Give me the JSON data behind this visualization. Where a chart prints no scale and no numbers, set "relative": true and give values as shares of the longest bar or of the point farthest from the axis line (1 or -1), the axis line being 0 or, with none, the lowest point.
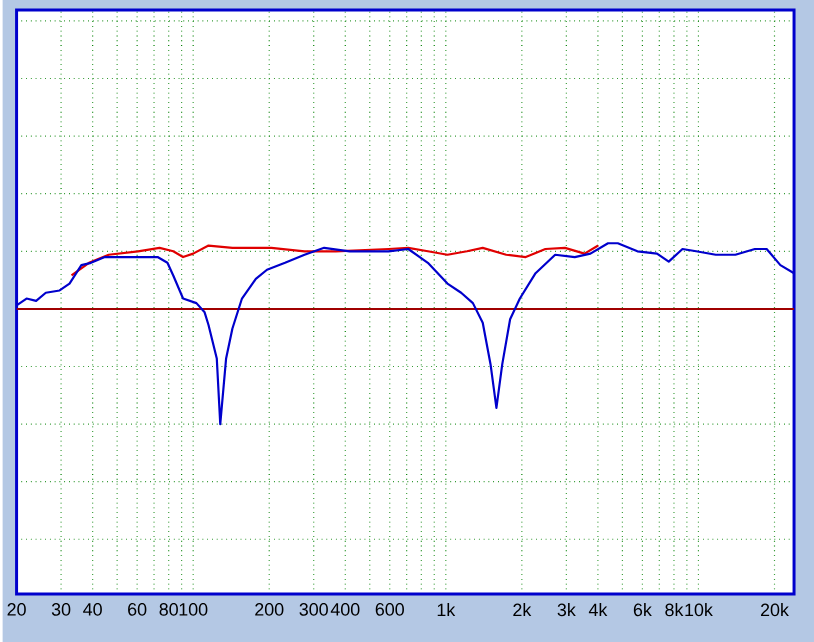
{
  "chart_data": {
    "type": "line",
    "relative": true,
    "log": "x",
    "grid": true,
    "xlim": [
      20,
      23900
    ],
    "ref_lines": [
      {
        "axis": "y",
        "value": 0,
        "color": "#a00000"
      }
    ],
    "xticks": [
      20,
      30,
      40,
      {
        "value": 50,
        "label": null
      },
      60,
      {
        "value": 70,
        "label": null
      },
      80,
      {
        "value": 90,
        "label": null
      },
      100,
      200,
      300,
      400,
      {
        "value": 500,
        "label": null
      },
      600,
      {
        "value": 700,
        "label": null
      },
      {
        "value": 800,
        "label": null
      },
      {
        "value": 900,
        "label": null
      },
      {
        "value": 1000,
        "label": "1k"
      },
      {
        "value": 2000,
        "label": "2k"
      },
      {
        "value": 3000,
        "label": "3k"
      },
      {
        "value": 4000,
        "label": "4k"
      },
      {
        "value": 5000,
        "label": null
      },
      {
        "value": 6000,
        "label": "6k"
      },
      {
        "value": 7000,
        "label": null
      },
      {
        "value": 8000,
        "label": "8k"
      },
      {
        "value": 9000,
        "label": null
      },
      {
        "value": 10000,
        "label": "10k"
      },
      {
        "value": 20000,
        "label": "20k"
      }
    ],
    "series": [
      {
        "color": "#e00000",
        "x": [
          33,
          38.7,
          46.3,
          60.5,
          73.6,
          83.4,
          91.2,
          100,
          115,
          143,
          204,
          276,
          367,
          471,
          594,
          710,
          849,
          1015,
          1213,
          1400,
          1734,
          2072,
          2478,
          2963,
          3540,
          4011
        ],
        "values": [
          0.29,
          0.4,
          0.47,
          0.5,
          0.53,
          0.5,
          0.45,
          0.48,
          0.55,
          0.53,
          0.53,
          0.5,
          0.5,
          null,
          0.52,
          0.53,
          0.5,
          0.47,
          0.5,
          0.53,
          0.47,
          0.45,
          0.52,
          0.53,
          0.48,
          0.55
        ]
      },
      {
        "color": "#0000cc",
        "x": [
          20,
          21.9,
          23.9,
          26.1,
          29.6,
          32.4,
          36.1,
          39.4,
          44.7,
          55.3,
          72.3,
          79.1,
          83.4,
          91.2,
          103,
          111,
          115,
          124,
          128,
          135,
          143,
          156,
          177,
          196,
          231,
          276,
          330,
          416,
          594,
          710,
          849,
          1015,
          1150,
          1280,
          1400,
          1503,
          1586,
          1673,
          1797,
          1964,
          2266,
          2710,
          3239,
          3737,
          4386,
          4796,
          5734,
          6854,
          7628,
          8646,
          9796,
          11710,
          14000,
          16730,
          18620,
          21100,
          23900
        ],
        "values": [
          0.03,
          0.09,
          0.07,
          0.14,
          0.16,
          0.22,
          0.38,
          0.4,
          0.45,
          0.45,
          0.45,
          0.4,
          0.29,
          0.09,
          0.05,
          -0.03,
          -0.14,
          -0.43,
          -1,
          -0.43,
          -0.17,
          0.09,
          0.26,
          0.34,
          0.4,
          0.47,
          0.53,
          0.5,
          0.5,
          0.52,
          0.4,
          0.22,
          0.14,
          0.05,
          -0.12,
          -0.48,
          -0.86,
          -0.48,
          -0.09,
          0.09,
          0.31,
          0.47,
          0.45,
          0.48,
          0.57,
          0.57,
          0.5,
          0.48,
          0.41,
          0.52,
          0.5,
          0.47,
          0.47,
          0.52,
          0.52,
          0.38,
          0.31
        ]
      }
    ]
  }
}
